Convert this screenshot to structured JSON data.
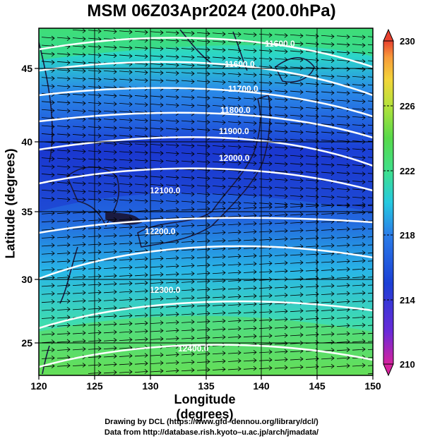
{
  "title": "MSM 06Z03Apr2024 (200.0hPa)",
  "axes": {
    "xlabel": "Longitude (degrees)",
    "ylabel": "Latitude  (degrees)",
    "xlim": [
      120,
      150
    ],
    "ylim": [
      22.5,
      48
    ],
    "xticks": [
      "120",
      "125",
      "130",
      "135",
      "140",
      "145",
      "150"
    ],
    "yticks": [
      "25",
      "30",
      "35",
      "40",
      "45"
    ]
  },
  "colorbar": {
    "min": 210,
    "max": 230,
    "labels": [
      "230",
      "226",
      "222",
      "218",
      "214",
      "210"
    ],
    "colors": [
      "#d6239e",
      "#6a2ad8",
      "#1b3fd6",
      "#2a7de8",
      "#25c9e0",
      "#3fe08a",
      "#58d94a",
      "#b5e23b",
      "#f3d53a",
      "#f79a3a",
      "#e8412f"
    ]
  },
  "contours": {
    "color": "#ffffff",
    "labels": [
      "11600.0",
      "11600.0",
      "11700.0",
      "11800.0",
      "11900.0",
      "12000.0",
      "12100.0",
      "12200.0",
      "12300.0",
      "12400.0"
    ]
  },
  "credits": {
    "line1": "Drawing by DCL (https://www.gfd–dennou.org/library/dcl/)",
    "line2": "Data from http://database.rish.kyoto–u.ac.jp/arch/jmadata/"
  },
  "chart_data": {
    "type": "heatmap",
    "title": "MSM 06Z03Apr2024 (200.0hPa)",
    "xlabel": "Longitude (degrees)",
    "ylabel": "Latitude  (degrees)",
    "xlim": [
      120,
      150
    ],
    "ylim": [
      22.5,
      48
    ],
    "colorbar_range": [
      210,
      230
    ],
    "contour_levels": [
      11600,
      11700,
      11800,
      11900,
      12000,
      12100,
      12200,
      12300,
      12400
    ],
    "wind_vectors": "eastward streamlines across domain"
  }
}
